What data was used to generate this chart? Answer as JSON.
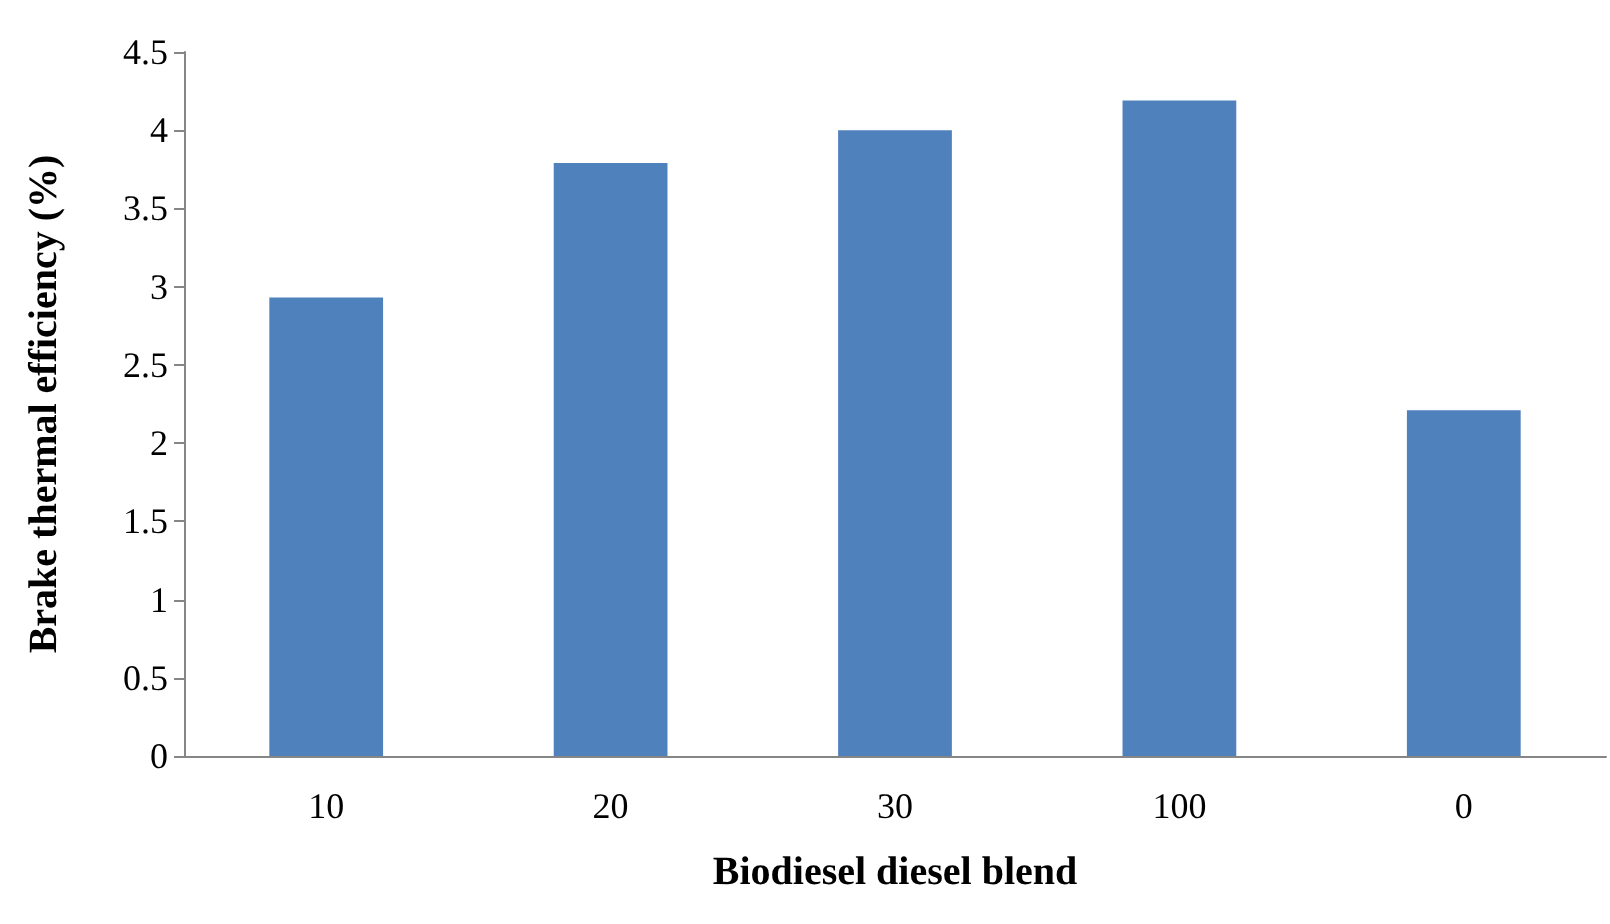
{
  "chart_data": {
    "type": "bar",
    "xlabel": "Biodiesel diesel blend",
    "ylabel": "Brake thermal efficiency (%)",
    "categories": [
      "10",
      "20",
      "30",
      "100",
      "0"
    ],
    "values": [
      2.93,
      3.79,
      4.0,
      4.19,
      2.21
    ],
    "color": "#4f81bd",
    "ylim": [
      0,
      4.5
    ],
    "yticks": [
      0,
      0.5,
      1,
      1.5,
      2,
      2.5,
      3,
      3.5,
      4,
      4.5
    ],
    "grid": false
  }
}
